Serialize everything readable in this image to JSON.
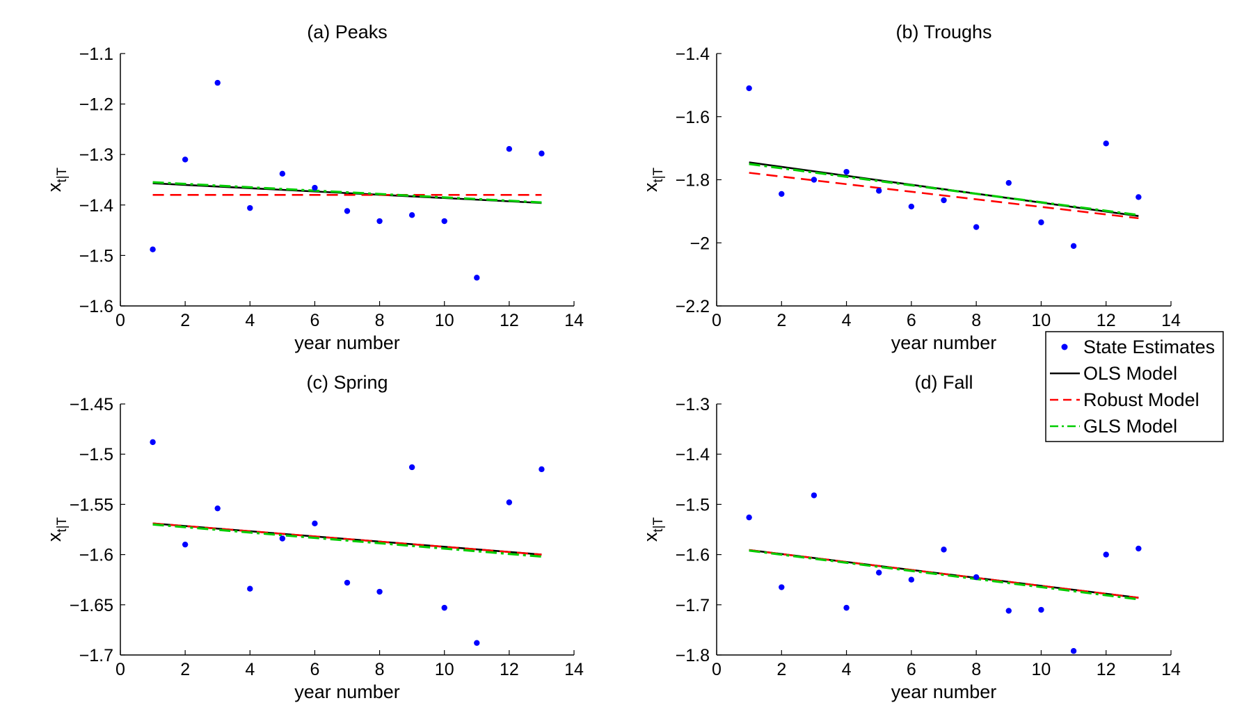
{
  "colors": {
    "state_estimates": "#0000ff",
    "ols": "#000000",
    "robust": "#ff0000",
    "gls": "#00cc00"
  },
  "legend": {
    "location": "outside-right-between-rows",
    "entries": [
      {
        "label": "State Estimates",
        "marker": "point"
      },
      {
        "label": "OLS Model",
        "line": "solid"
      },
      {
        "label": "Robust Model",
        "line": "dashed"
      },
      {
        "label": "GLS Model",
        "line": "dash-dot"
      }
    ]
  },
  "chart_data": [
    {
      "type": "scatter",
      "title": "(a) Peaks",
      "xlabel": "year number",
      "ylabel": "x",
      "ylabel_sub": "t|T",
      "xlim": [
        0,
        14
      ],
      "ylim": [
        -1.6,
        -1.1
      ],
      "xticks": [
        0,
        2,
        4,
        6,
        8,
        10,
        12,
        14
      ],
      "yticks": [
        -1.6,
        -1.5,
        -1.4,
        -1.3,
        -1.2,
        -1.1
      ],
      "ytick_labels": [
        "−1.6",
        "−1.5",
        "−1.4",
        "−1.3",
        "−1.2",
        "−1.1"
      ],
      "grid": false,
      "points": {
        "name": "State Estimates",
        "x": [
          1,
          2,
          3,
          4,
          5,
          6,
          7,
          8,
          9,
          10,
          11,
          12,
          13
        ],
        "y": [
          -1.488,
          -1.31,
          -1.158,
          -1.406,
          -1.338,
          -1.366,
          -1.412,
          -1.432,
          -1.42,
          -1.432,
          -1.544,
          -1.289,
          -1.298
        ]
      },
      "lines": [
        {
          "name": "OLS Model",
          "x": [
            1,
            13
          ],
          "y": [
            -1.357,
            -1.396
          ]
        },
        {
          "name": "Robust Model",
          "x": [
            1,
            13
          ],
          "y": [
            -1.38,
            -1.38
          ]
        },
        {
          "name": "GLS Model",
          "x": [
            1,
            13
          ],
          "y": [
            -1.355,
            -1.395
          ]
        }
      ]
    },
    {
      "type": "scatter",
      "title": "(b) Troughs",
      "xlabel": "year number",
      "ylabel": "x",
      "ylabel_sub": "t|T",
      "xlim": [
        0,
        14
      ],
      "ylim": [
        -2.2,
        -1.4
      ],
      "xticks": [
        0,
        2,
        4,
        6,
        8,
        10,
        12,
        14
      ],
      "yticks": [
        -2.2,
        -2,
        -1.8,
        -1.6,
        -1.4
      ],
      "ytick_labels": [
        "−2.2",
        "−2",
        "−1.8",
        "−1.6",
        "−1.4"
      ],
      "grid": false,
      "points": {
        "name": "State Estimates",
        "x": [
          1,
          2,
          3,
          4,
          5,
          6,
          7,
          8,
          9,
          10,
          11,
          12,
          13
        ],
        "y": [
          -1.51,
          -1.845,
          -1.8,
          -1.775,
          -1.835,
          -1.885,
          -1.865,
          -1.95,
          -1.81,
          -1.935,
          -2.01,
          -1.685,
          -1.855
        ]
      },
      "lines": [
        {
          "name": "OLS Model",
          "x": [
            1,
            13
          ],
          "y": [
            -1.745,
            -1.915
          ]
        },
        {
          "name": "Robust Model",
          "x": [
            1,
            13
          ],
          "y": [
            -1.778,
            -1.922
          ]
        },
        {
          "name": "GLS Model",
          "x": [
            1,
            13
          ],
          "y": [
            -1.75,
            -1.912
          ]
        }
      ]
    },
    {
      "type": "scatter",
      "title": "(c) Spring",
      "xlabel": "year number",
      "ylabel": "x",
      "ylabel_sub": "t|T",
      "xlim": [
        0,
        14
      ],
      "ylim": [
        -1.7,
        -1.45
      ],
      "xticks": [
        0,
        2,
        4,
        6,
        8,
        10,
        12,
        14
      ],
      "yticks": [
        -1.7,
        -1.65,
        -1.6,
        -1.55,
        -1.5,
        -1.45
      ],
      "ytick_labels": [
        "−1.7",
        "−1.65",
        "−1.6",
        "−1.55",
        "−1.5",
        "−1.45"
      ],
      "grid": false,
      "points": {
        "name": "State Estimates",
        "x": [
          1,
          2,
          3,
          4,
          5,
          6,
          7,
          8,
          9,
          10,
          11,
          12,
          13
        ],
        "y": [
          -1.488,
          -1.59,
          -1.554,
          -1.634,
          -1.584,
          -1.569,
          -1.628,
          -1.637,
          -1.513,
          -1.653,
          -1.688,
          -1.548,
          -1.515
        ]
      },
      "lines": [
        {
          "name": "OLS Model",
          "x": [
            1,
            13
          ],
          "y": [
            -1.569,
            -1.6
          ]
        },
        {
          "name": "Robust Model",
          "x": [
            1,
            13
          ],
          "y": [
            -1.569,
            -1.6
          ]
        },
        {
          "name": "GLS Model",
          "x": [
            1,
            13
          ],
          "y": [
            -1.57,
            -1.602
          ]
        }
      ]
    },
    {
      "type": "scatter",
      "title": "(d) Fall",
      "xlabel": "year number",
      "ylabel": "x",
      "ylabel_sub": "t|T",
      "xlim": [
        0,
        14
      ],
      "ylim": [
        -1.8,
        -1.3
      ],
      "xticks": [
        0,
        2,
        4,
        6,
        8,
        10,
        12,
        14
      ],
      "yticks": [
        -1.8,
        -1.7,
        -1.6,
        -1.5,
        -1.4,
        -1.3
      ],
      "ytick_labels": [
        "−1.8",
        "−1.7",
        "−1.6",
        "−1.5",
        "−1.4",
        "−1.3"
      ],
      "grid": false,
      "points": {
        "name": "State Estimates",
        "x": [
          1,
          2,
          3,
          4,
          5,
          6,
          7,
          8,
          9,
          10,
          11,
          12,
          13
        ],
        "y": [
          -1.526,
          -1.665,
          -1.482,
          -1.706,
          -1.636,
          -1.65,
          -1.59,
          -1.645,
          -1.712,
          -1.71,
          -1.792,
          -1.6,
          -1.588
        ]
      },
      "lines": [
        {
          "name": "OLS Model",
          "x": [
            1,
            13
          ],
          "y": [
            -1.591,
            -1.686
          ]
        },
        {
          "name": "Robust Model",
          "x": [
            1,
            13
          ],
          "y": [
            -1.591,
            -1.686
          ]
        },
        {
          "name": "GLS Model",
          "x": [
            1,
            13
          ],
          "y": [
            -1.592,
            -1.689
          ]
        }
      ]
    }
  ]
}
